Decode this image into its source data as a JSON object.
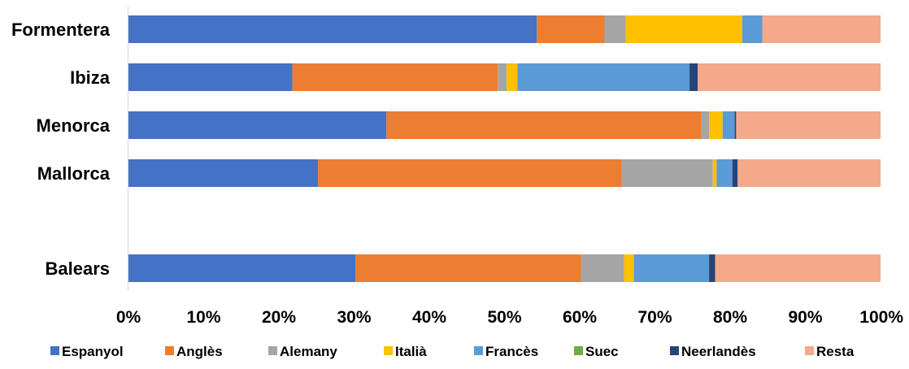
{
  "chart_data": {
    "type": "bar",
    "orientation": "horizontal",
    "stacked": "percent",
    "categories": [
      "Formentera",
      "Ibiza",
      "Menorca",
      "Mallorca",
      "Balears"
    ],
    "series": [
      {
        "name": "Espanyol",
        "color": "#4472C4",
        "values": [
          54.3,
          21.8,
          34.3,
          25.2,
          30.2
        ]
      },
      {
        "name": "Anglès",
        "color": "#ED7D31",
        "values": [
          9.0,
          27.3,
          41.9,
          40.4,
          30.0
        ]
      },
      {
        "name": "Alemany",
        "color": "#A5A5A5",
        "values": [
          2.8,
          1.2,
          1.0,
          12.1,
          5.7
        ]
      },
      {
        "name": "Italià",
        "color": "#FFC000",
        "values": [
          15.5,
          1.4,
          1.8,
          0.5,
          1.3
        ]
      },
      {
        "name": "Francès",
        "color": "#5B9BD5",
        "values": [
          2.7,
          22.9,
          1.6,
          2.1,
          10.0
        ]
      },
      {
        "name": "Suec",
        "color": "#70AD47",
        "values": [
          0.0,
          0.0,
          0.0,
          0.0,
          0.0
        ]
      },
      {
        "name": "Neerlandès",
        "color": "#264478",
        "values": [
          0.0,
          1.1,
          0.2,
          0.7,
          0.8
        ]
      },
      {
        "name": "Resta",
        "color": "#F4A98A",
        "values": [
          15.7,
          24.3,
          19.2,
          19.0,
          22.0
        ]
      }
    ],
    "xlim": [
      0,
      100
    ],
    "xticks": [
      "0%",
      "10%",
      "20%",
      "30%",
      "40%",
      "50%",
      "60%",
      "70%",
      "80%",
      "90%",
      "100%"
    ],
    "grid": false,
    "legend": "bottom"
  }
}
